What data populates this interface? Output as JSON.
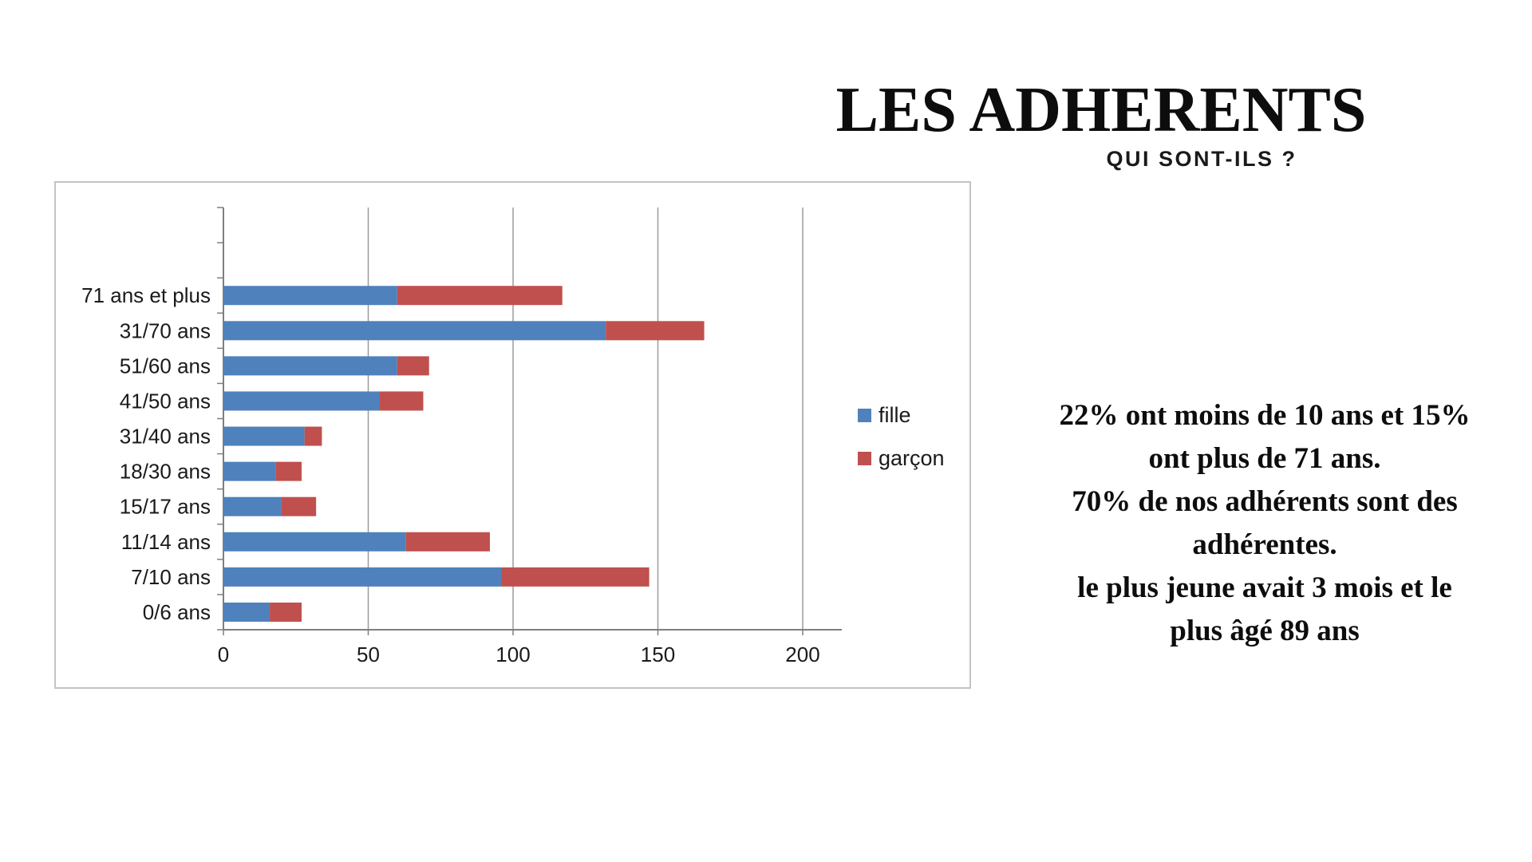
{
  "header": {
    "title": "LES ADHERENTS",
    "subtitle": "QUI SONT-ILS ?"
  },
  "infotext": {
    "lines": [
      "22% ont moins de 10 ans et 15%",
      "ont plus de 71 ans.",
      "70% de nos adhérents sont des",
      "adhérentes.",
      "le plus jeune avait 3 mois et le",
      "plus âgé 89 ans"
    ]
  },
  "chart_data": {
    "type": "bar",
    "orientation": "horizontal",
    "stacked": true,
    "categories": [
      "71 ans et plus",
      "31/70 ans",
      "51/60 ans",
      "41/50 ans",
      "31/40 ans",
      "18/30 ans",
      "15/17 ans",
      "11/14 ans",
      "7/10 ans",
      "0/6 ans"
    ],
    "series": [
      {
        "name": "fille",
        "color": "#4f81bd",
        "values": [
          60,
          132,
          60,
          54,
          28,
          18,
          20,
          63,
          96,
          16
        ]
      },
      {
        "name": "garçon",
        "color": "#c0504d",
        "values": [
          57,
          34,
          11,
          15,
          6,
          9,
          12,
          29,
          51,
          11
        ]
      }
    ],
    "axis": {
      "ticks": [
        0,
        50,
        100,
        150,
        200
      ],
      "gridlines": [
        50,
        100,
        150,
        200
      ],
      "xlim": [
        0,
        200
      ]
    },
    "legend_position": "right-inside",
    "grid": true,
    "empty_top_bands": 2,
    "colors": {
      "gridline": "#9b9b9b",
      "axis": "#7f7f7f",
      "frame": "#c3c3c3",
      "text": "#1a1a1a"
    }
  }
}
